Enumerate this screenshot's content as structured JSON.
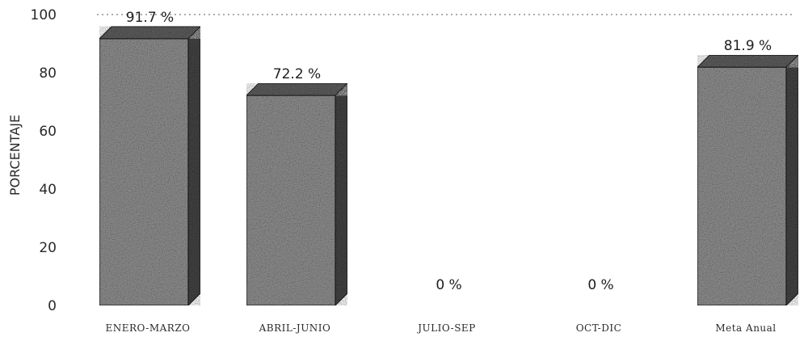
{
  "chart_data": {
    "type": "bar",
    "title": "",
    "xlabel": "",
    "ylabel": "PORCENTAJE",
    "categories": [
      "ENERO-MARZO",
      "ABRIL-JUNIO",
      "JULIO-SEP",
      "OCT-DIC",
      "Meta Anual"
    ],
    "values": [
      91.7,
      72.2,
      0,
      0,
      81.9
    ],
    "value_labels": [
      "91.7 %",
      "72.2 %",
      "0 %",
      "0 %",
      "81.9 %"
    ],
    "ylim": [
      0,
      100
    ],
    "yticks": [
      0,
      20,
      40,
      60,
      80,
      100
    ],
    "ytick_labels": [
      "0",
      "20",
      "40",
      "60",
      "80",
      "100"
    ],
    "grid": false,
    "reference_line": 100,
    "bar_style": "3d-textured",
    "colors": {
      "bar_front": "#8f8f8f",
      "bar_top": "#5e5e5e",
      "bar_side": "#444444",
      "edge": "#1a1a1a",
      "text": "#2a2a2a",
      "reference_line": "#7a7a7a"
    }
  }
}
